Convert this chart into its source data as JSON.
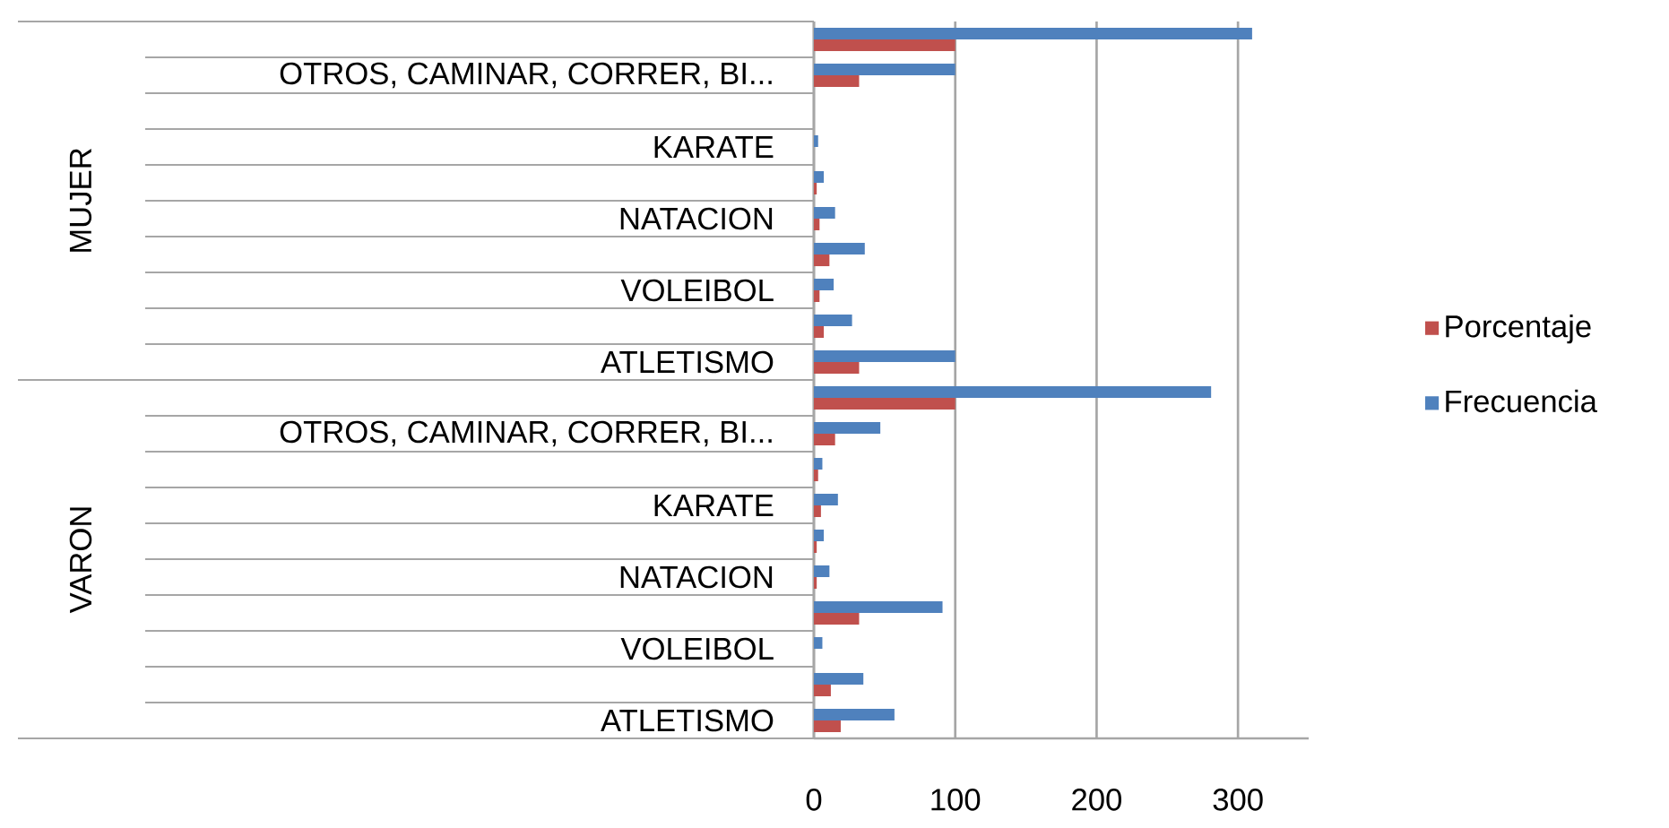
{
  "chart_data": {
    "type": "bar",
    "orientation": "horizontal",
    "categories": [
      null,
      "OTROS, CAMINAR, CORRER, BI...",
      null,
      "KARATE",
      null,
      "NATACION",
      null,
      "VOLEIBOL",
      null,
      "ATLETISMO",
      null,
      "OTROS, CAMINAR, CORRER, BI...",
      null,
      "KARATE",
      null,
      "NATACION",
      null,
      "VOLEIBOL",
      null,
      "ATLETISMO"
    ],
    "series": [
      {
        "name": "Porcentaje",
        "color": "#c0504d",
        "values": [
          100,
          32,
          0,
          0,
          2,
          4,
          11,
          4,
          7,
          32,
          100,
          15,
          3,
          5,
          2,
          2,
          32,
          0,
          12,
          19
        ]
      },
      {
        "name": "Frecuencia",
        "color": "#4f81bd",
        "values": [
          310,
          100,
          0,
          3,
          7,
          15,
          36,
          14,
          27,
          100,
          281,
          47,
          6,
          17,
          7,
          11,
          91,
          6,
          35,
          57
        ]
      }
    ],
    "annotations": [
      "MUJER",
      "VARON"
    ],
    "xlim": [
      0,
      350
    ],
    "xticks": [
      0,
      100,
      200,
      300
    ],
    "grid": "x",
    "legend": "right"
  }
}
